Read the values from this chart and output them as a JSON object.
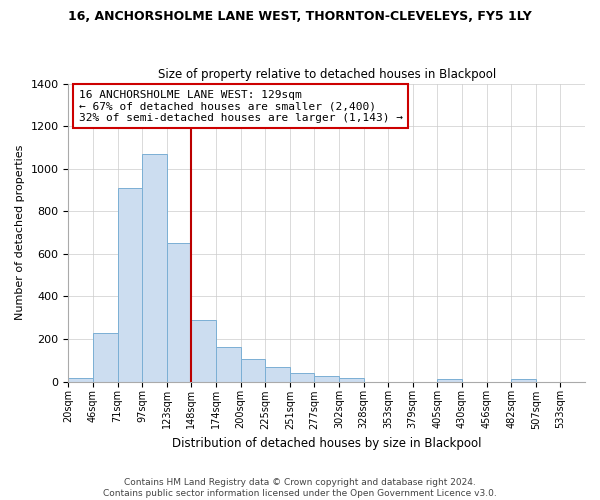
{
  "title": "16, ANCHORSHOLME LANE WEST, THORNTON-CLEVELEYS, FY5 1LY",
  "subtitle": "Size of property relative to detached houses in Blackpool",
  "xlabel": "Distribution of detached houses by size in Blackpool",
  "ylabel": "Number of detached properties",
  "bar_heights": [
    15,
    230,
    910,
    1070,
    650,
    290,
    160,
    105,
    70,
    40,
    25,
    15,
    0,
    0,
    0,
    10,
    0,
    0,
    10,
    0,
    0
  ],
  "bar_labels": [
    "20sqm",
    "46sqm",
    "71sqm",
    "97sqm",
    "123sqm",
    "148sqm",
    "174sqm",
    "200sqm",
    "225sqm",
    "251sqm",
    "277sqm",
    "302sqm",
    "328sqm",
    "353sqm",
    "379sqm",
    "405sqm",
    "430sqm",
    "456sqm",
    "482sqm",
    "507sqm",
    "533sqm"
  ],
  "bar_color": "#ccddf0",
  "bar_edge_color": "#7bafd4",
  "vline_x_index": 4,
  "vline_color": "#bb0000",
  "ylim": [
    0,
    1400
  ],
  "yticks": [
    0,
    200,
    400,
    600,
    800,
    1000,
    1200,
    1400
  ],
  "annotation_title": "16 ANCHORSHOLME LANE WEST: 129sqm",
  "annotation_line1": "← 67% of detached houses are smaller (2,400)",
  "annotation_line2": "32% of semi-detached houses are larger (1,143) →",
  "footer1": "Contains HM Land Registry data © Crown copyright and database right 2024.",
  "footer2": "Contains public sector information licensed under the Open Government Licence v3.0.",
  "bg_color": "#ffffff",
  "grid_color": "#cccccc",
  "title_fontsize": 9,
  "subtitle_fontsize": 8.5,
  "ylabel_fontsize": 8,
  "xlabel_fontsize": 8.5,
  "ytick_fontsize": 8,
  "xtick_fontsize": 7,
  "annotation_fontsize": 8,
  "footer_fontsize": 6.5
}
